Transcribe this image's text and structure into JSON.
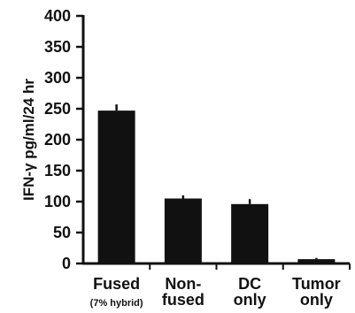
{
  "chart_data": {
    "type": "bar",
    "categories": [
      {
        "lines": [
          "Fused"
        ],
        "sub": "(7% hybrid)"
      },
      {
        "lines": [
          "Non-",
          "fused"
        ]
      },
      {
        "lines": [
          "DC",
          "only"
        ]
      },
      {
        "lines": [
          "Tumor",
          "only"
        ]
      }
    ],
    "values": [
      247,
      105,
      96,
      7
    ],
    "errors": [
      10,
      5,
      8,
      2
    ],
    "title": "",
    "xlabel": "",
    "ylabel": "IFN-γ pg/ml/24 hr",
    "ylim": [
      0,
      400
    ],
    "yticks": [
      0,
      50,
      100,
      150,
      200,
      250,
      300,
      350,
      400
    ],
    "bar_color": "#111111",
    "grid": false,
    "legend": "none"
  }
}
